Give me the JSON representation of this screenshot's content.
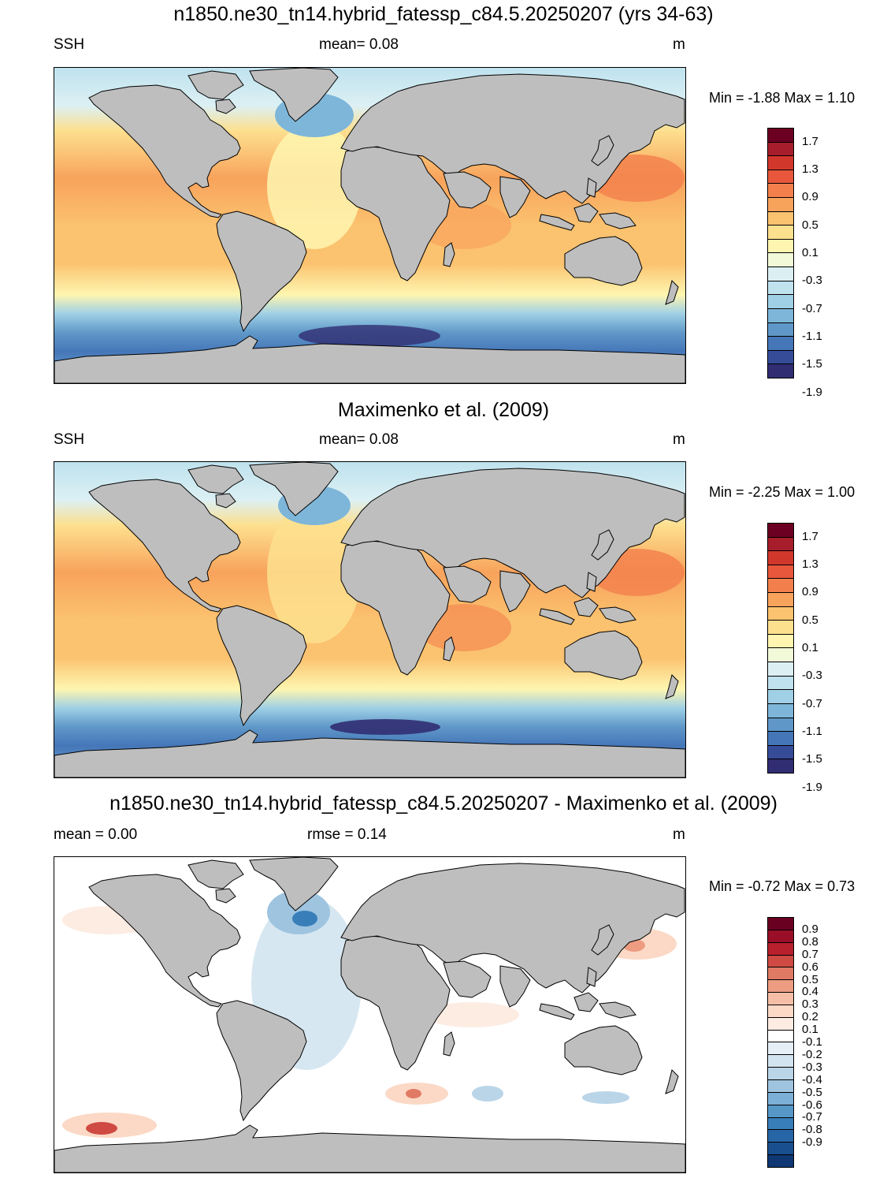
{
  "panels": [
    {
      "title": "n1850.ne30_tn14.hybrid_fatessp_c84.5.20250207 (yrs 34-63)",
      "left_label": "SSH",
      "center_label": "mean=   0.08",
      "units": "m",
      "minmax": "Min =  -1.88 Max =   1.10",
      "type": "absolute"
    },
    {
      "title": "Maximenko et al. (2009)",
      "left_label": "SSH",
      "center_label": "mean=   0.08",
      "units": "m",
      "minmax": "Min =  -2.25 Max =   1.00",
      "type": "absolute"
    },
    {
      "title": "n1850.ne30_tn14.hybrid_fatessp_c84.5.20250207 - Maximenko et al. (2009)",
      "left_label": "mean =   0.00",
      "center_label": "rmse =   0.14",
      "units": "m",
      "minmax": "Min =  -0.72 Max =   0.73",
      "type": "difference"
    }
  ],
  "colorbar_abs": {
    "colors": [
      "#6b0022",
      "#a71d2b",
      "#d2372c",
      "#e8573c",
      "#f3804c",
      "#f8a35c",
      "#fbc26f",
      "#fde08e",
      "#fef6b0",
      "#f2f9d8",
      "#dcf0f4",
      "#bfe2ee",
      "#9fd0e6",
      "#7eb6d9",
      "#5f98c8",
      "#4576b8",
      "#364c99",
      "#312d72"
    ],
    "labels": [
      "1.7",
      "1.3",
      "0.9",
      "0.5",
      "0.1",
      "-0.3",
      "-0.7",
      "-1.1",
      "-1.5",
      "-1.9"
    ]
  },
  "colorbar_diff": {
    "colors": [
      "#6a0021",
      "#9a0e27",
      "#b8202d",
      "#ce4a43",
      "#e07a65",
      "#ed9c82",
      "#f6bea6",
      "#fbd9c6",
      "#fdece2",
      "#ffffff",
      "#e6eef6",
      "#d2e4f0",
      "#bad5e8",
      "#9ec4e0",
      "#7cb0d6",
      "#5598c8",
      "#387eb9",
      "#2766a6",
      "#1a4f8f",
      "#0e3773"
    ],
    "labels": [
      "0.9",
      "0.8",
      "0.7",
      "0.6",
      "0.5",
      "0.4",
      "0.3",
      "0.2",
      "0.1",
      "-0.1",
      "-0.2",
      "-0.3",
      "-0.4",
      "-0.5",
      "-0.6",
      "-0.7",
      "-0.8",
      "-0.9"
    ]
  }
}
